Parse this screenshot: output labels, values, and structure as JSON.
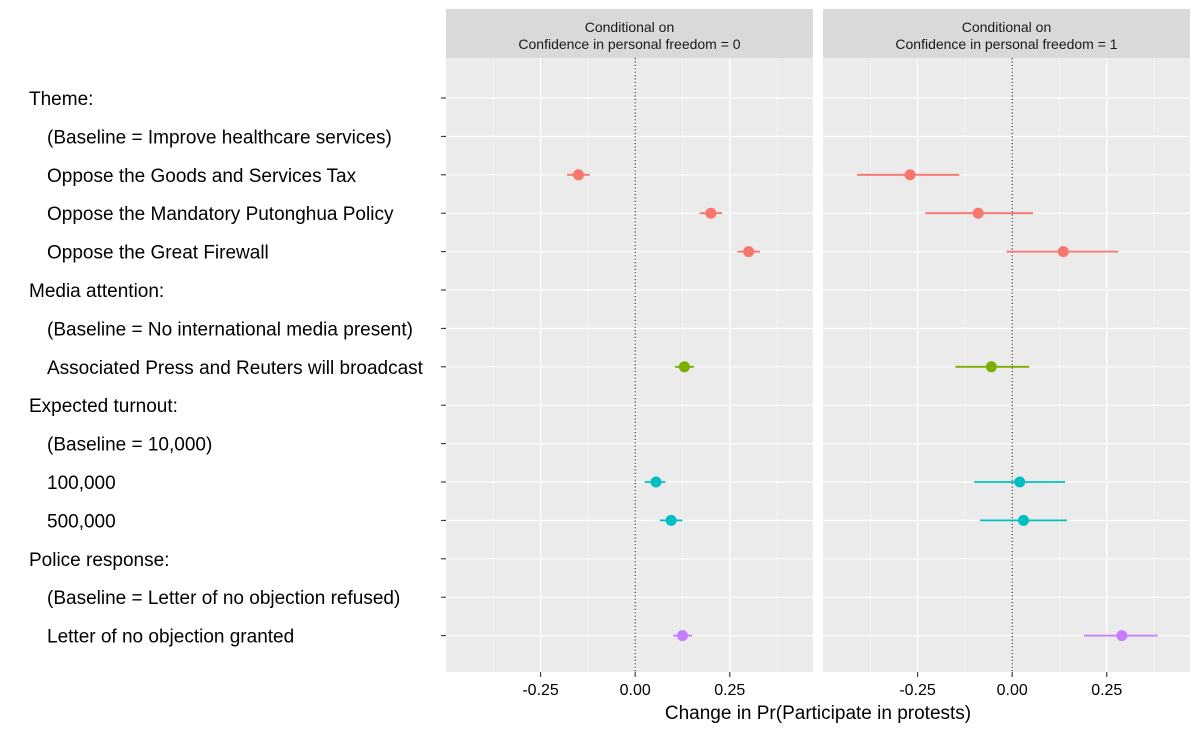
{
  "chart_data": {
    "type": "scatter",
    "subtype": "coefficient-plot-with-intervals",
    "xlabel": "Change in Pr(Participate in protests)",
    "ylabel": "",
    "xlim": [
      -0.5,
      0.47
    ],
    "x_ticks": [
      -0.25,
      0.0,
      0.25
    ],
    "x_tick_labels": [
      "-0.25",
      "0.00",
      "0.25"
    ],
    "reference_line": {
      "x": 0,
      "style": "dotted"
    },
    "grid": true,
    "legend": "none",
    "facets": [
      {
        "title_line1": "Conditional on",
        "title_line2": "Confidence in personal freedom = 0"
      },
      {
        "title_line1": "Conditional on",
        "title_line2": "Confidence in personal freedom = 1"
      }
    ],
    "rows": [
      {
        "label": "Theme:",
        "group": "theme",
        "header": true
      },
      {
        "label": "   (Baseline = Improve healthcare services)",
        "group": "theme",
        "baseline": true
      },
      {
        "label": "   Oppose the Goods and Services Tax",
        "group": "theme"
      },
      {
        "label": "   Oppose the Mandatory Putonghua Policy",
        "group": "theme"
      },
      {
        "label": "   Oppose the Great Firewall",
        "group": "theme"
      },
      {
        "label": "Media attention:",
        "group": "media",
        "header": true
      },
      {
        "label": "   (Baseline = No international media present)",
        "group": "media",
        "baseline": true
      },
      {
        "label": "   Associated Press and Reuters will broadcast",
        "group": "media"
      },
      {
        "label": "Expected turnout:",
        "group": "turnout",
        "header": true
      },
      {
        "label": "   (Baseline = 10,000)",
        "group": "turnout",
        "baseline": true
      },
      {
        "label": "   100,000",
        "group": "turnout"
      },
      {
        "label": "   500,000",
        "group": "turnout"
      },
      {
        "label": "Police response:",
        "group": "police",
        "header": true
      },
      {
        "label": "   (Baseline = Letter of no objection refused)",
        "group": "police",
        "baseline": true
      },
      {
        "label": "   Letter of no objection granted",
        "group": "police"
      }
    ],
    "group_colors": {
      "theme": "#F8766D",
      "media": "#7CAE00",
      "turnout": "#00BFC4",
      "police": "#C77CFF"
    },
    "series": [
      {
        "facet": 0,
        "points": [
          {
            "row": 2,
            "est": -0.15,
            "lo": -0.18,
            "hi": -0.12
          },
          {
            "row": 3,
            "est": 0.2,
            "lo": 0.17,
            "hi": 0.23
          },
          {
            "row": 4,
            "est": 0.3,
            "lo": 0.27,
            "hi": 0.33
          },
          {
            "row": 7,
            "est": 0.13,
            "lo": 0.105,
            "hi": 0.155
          },
          {
            "row": 10,
            "est": 0.055,
            "lo": 0.025,
            "hi": 0.08
          },
          {
            "row": 11,
            "est": 0.095,
            "lo": 0.065,
            "hi": 0.125
          },
          {
            "row": 14,
            "est": 0.125,
            "lo": 0.1,
            "hi": 0.15
          }
        ]
      },
      {
        "facet": 1,
        "points": [
          {
            "row": 2,
            "est": -0.27,
            "lo": -0.41,
            "hi": -0.14
          },
          {
            "row": 3,
            "est": -0.09,
            "lo": -0.23,
            "hi": 0.055
          },
          {
            "row": 4,
            "est": 0.135,
            "lo": -0.015,
            "hi": 0.28
          },
          {
            "row": 7,
            "est": -0.055,
            "lo": -0.15,
            "hi": 0.045
          },
          {
            "row": 10,
            "est": 0.02,
            "lo": -0.1,
            "hi": 0.14
          },
          {
            "row": 11,
            "est": 0.03,
            "lo": -0.085,
            "hi": 0.145
          },
          {
            "row": 14,
            "est": 0.29,
            "lo": 0.19,
            "hi": 0.385
          }
        ]
      }
    ]
  }
}
